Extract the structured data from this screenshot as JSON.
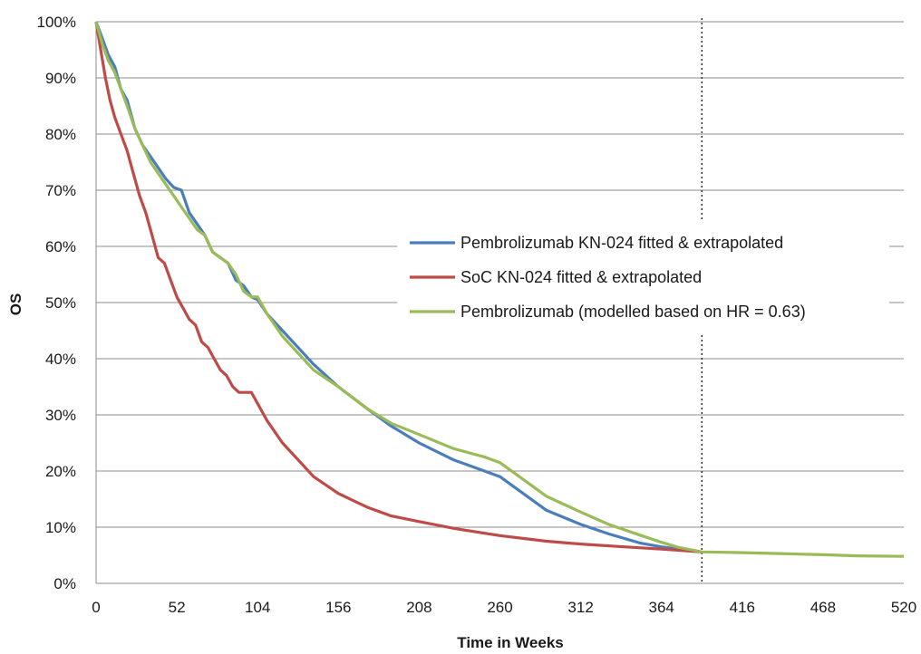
{
  "chart_data": {
    "type": "line",
    "xlabel": "Time in Weeks",
    "ylabel": "OS",
    "xlim": [
      0,
      520
    ],
    "ylim": [
      0,
      100
    ],
    "x_ticks": [
      0,
      52,
      104,
      156,
      208,
      260,
      312,
      364,
      416,
      468,
      520
    ],
    "y_ticks": [
      "0%",
      "10%",
      "20%",
      "30%",
      "40%",
      "50%",
      "60%",
      "70%",
      "80%",
      "90%",
      "100%"
    ],
    "grid": "horizontal",
    "legend_position": "right",
    "reference_line_x": 390,
    "series": [
      {
        "name": "Pembrolizumab KN-024 fitted & extrapolated",
        "color": "#4a7ebb",
        "x": [
          0,
          4,
          8,
          12,
          16,
          20,
          25,
          30,
          35,
          40,
          45,
          50,
          55,
          60,
          65,
          70,
          75,
          80,
          85,
          90,
          95,
          100,
          104,
          110,
          120,
          130,
          140,
          156,
          175,
          190,
          208,
          230,
          250,
          260,
          275,
          290,
          312,
          330,
          350,
          364,
          375,
          390
        ],
        "values": [
          100,
          97,
          94,
          92,
          88,
          86,
          81,
          78,
          76,
          74,
          72,
          70.5,
          70,
          66,
          64,
          62,
          59,
          58,
          57,
          54,
          53,
          51,
          50.5,
          48,
          45,
          42,
          39,
          35,
          31,
          28,
          25,
          22,
          20,
          19,
          16,
          13,
          10.5,
          8.8,
          7.2,
          6.5,
          6.1,
          5.6
        ]
      },
      {
        "name": "SoC KN-024 fitted & extrapolated",
        "color": "#be4b48",
        "x": [
          0,
          3,
          6,
          9,
          12,
          16,
          20,
          24,
          28,
          32,
          36,
          40,
          44,
          48,
          52,
          56,
          60,
          64,
          68,
          72,
          76,
          80,
          84,
          88,
          92,
          96,
          100,
          104,
          110,
          120,
          130,
          140,
          156,
          175,
          190,
          208,
          230,
          260,
          290,
          312,
          340,
          364,
          390
        ],
        "values": [
          100,
          95,
          90,
          86,
          83,
          80,
          77,
          73,
          69,
          66,
          62,
          58,
          57,
          54,
          51,
          49,
          47,
          46,
          43,
          42,
          40,
          38,
          37,
          35,
          34,
          34,
          34,
          32,
          29,
          25,
          22,
          19,
          16,
          13.5,
          12,
          11,
          9.8,
          8.5,
          7.5,
          7,
          6.5,
          6.1,
          5.6
        ]
      },
      {
        "name": "Pembrolizumab (modelled based on HR = 0.63)",
        "color": "#9bbb59",
        "x": [
          0,
          4,
          8,
          12,
          16,
          20,
          25,
          30,
          35,
          40,
          45,
          50,
          55,
          60,
          65,
          70,
          75,
          80,
          85,
          90,
          95,
          100,
          104,
          110,
          120,
          130,
          140,
          156,
          175,
          190,
          208,
          230,
          250,
          260,
          275,
          290,
          312,
          330,
          350,
          364,
          375,
          390,
          410,
          440,
          468,
          490,
          520
        ],
        "values": [
          100,
          96,
          93,
          91,
          88,
          85,
          81,
          78,
          75,
          73,
          71,
          69,
          67,
          65,
          63,
          62,
          59,
          58,
          57,
          55,
          52,
          51,
          51,
          48,
          44,
          41,
          38,
          35,
          31,
          28.5,
          26.5,
          24,
          22.5,
          21.5,
          18.5,
          15.5,
          12.7,
          10.5,
          8.6,
          7.3,
          6.4,
          5.6,
          5.5,
          5.3,
          5.1,
          4.9,
          4.8
        ]
      }
    ]
  }
}
